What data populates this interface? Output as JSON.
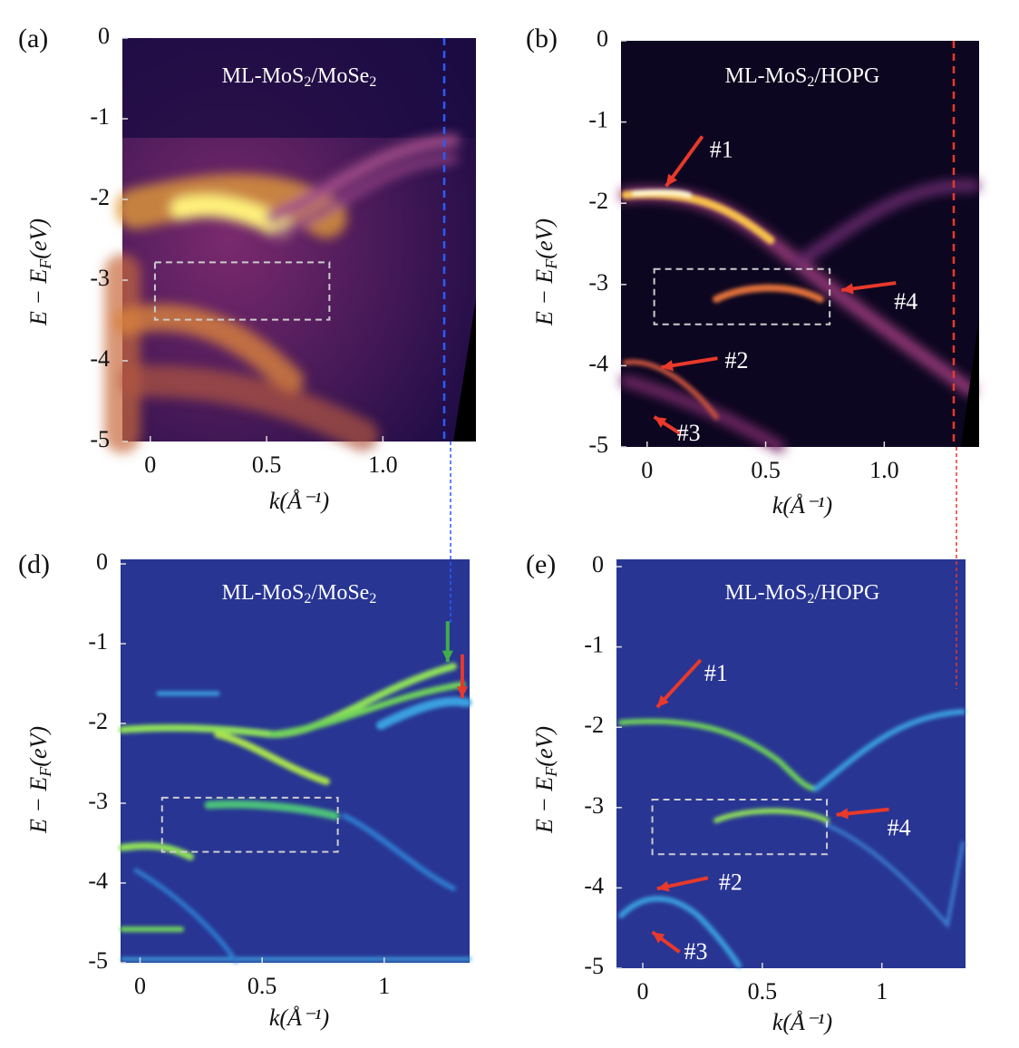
{
  "chart_data": [
    {
      "type": "image",
      "panel": "(a)",
      "title": [
        "ML-MoS",
        "2",
        "/MoSe",
        "2"
      ],
      "xlabel": "k(Å⁻¹)",
      "ylabel": [
        "E − E",
        "F",
        "(eV)"
      ],
      "xlim": [
        -0.12,
        1.4
      ],
      "ylim": [
        -5,
        0
      ],
      "xticks": [
        0,
        0.5,
        {
          "value": 1,
          "label": "1.0"
        }
      ],
      "yticks": [
        0,
        -1,
        -2,
        -3,
        -4,
        -5
      ],
      "box": {
        "x": [
          0.02,
          0.77
        ],
        "y": [
          -2.78,
          -3.49
        ]
      },
      "annotations": []
    },
    {
      "type": "image",
      "panel": "(b)",
      "title": [
        "ML-MoS",
        "2",
        "/HOPG"
      ],
      "xlabel": "k(Å⁻¹)",
      "ylabel": [
        "E − E",
        "F",
        "(eV)"
      ],
      "xlim": [
        -0.11,
        1.4
      ],
      "ylim": [
        -5,
        0
      ],
      "xticks": [
        0,
        0.5,
        {
          "value": 1,
          "label": "1.0"
        }
      ],
      "yticks": [
        0,
        -1,
        -2,
        -3,
        -4,
        -5
      ],
      "box": {
        "x": [
          0.03,
          0.77
        ],
        "y": [
          -2.81,
          -3.49
        ]
      },
      "annotations": [
        {
          "text": "#1",
          "x": 0.08,
          "y": -1.79,
          "color": "#e8392b"
        },
        {
          "text": "#4",
          "x": 0.82,
          "y": -3.07,
          "color": "#e8392b"
        },
        {
          "text": "#2",
          "x": 0.06,
          "y": -4.02,
          "color": "#e8392b"
        },
        {
          "text": "#3",
          "x": 0.03,
          "y": -4.63,
          "color": "#e8392b"
        }
      ]
    },
    {
      "type": "image",
      "panel": "(d)",
      "title": [
        "ML-MoS",
        "2",
        "/MoSe",
        "2"
      ],
      "xlabel": "k(Å⁻¹)",
      "ylabel": [
        "E − E",
        "F",
        "(eV)"
      ],
      "xlim": [
        -0.08,
        1.35
      ],
      "ylim": [
        -5,
        0
      ],
      "xticks": [
        0,
        0.5,
        1
      ],
      "yticks": [
        0,
        -1,
        -2,
        -3,
        -4,
        -5
      ],
      "box": {
        "x": [
          0.09,
          0.81
        ],
        "y": [
          -2.93,
          -3.61
        ]
      },
      "annotations": [
        {
          "x": 1.26,
          "y": -1.23,
          "color": "#3fae49"
        },
        {
          "x": 1.32,
          "y": -1.68,
          "color": "#e8392b"
        }
      ]
    },
    {
      "type": "image",
      "panel": "(e)",
      "title": [
        "ML-MoS",
        "2",
        "/HOPG"
      ],
      "xlabel": "k(Å⁻¹)",
      "ylabel": [
        "E − E",
        "F",
        "(eV)"
      ],
      "xlim": [
        -0.11,
        1.35
      ],
      "ylim": [
        -5,
        0
      ],
      "xticks": [
        0,
        0.5,
        1
      ],
      "yticks": [
        0,
        -1,
        -2,
        -3,
        -4,
        -5
      ],
      "box": {
        "x": [
          0.04,
          0.77
        ],
        "y": [
          -2.9,
          -3.58
        ]
      },
      "annotations": [
        {
          "text": "#1",
          "x": 0.06,
          "y": -1.75,
          "color": "#e8392b"
        },
        {
          "text": "#4",
          "x": 0.81,
          "y": -3.09,
          "color": "#e8392b"
        },
        {
          "text": "#2",
          "x": 0.06,
          "y": -4.01,
          "color": "#e8392b"
        },
        {
          "text": "#3",
          "x": 0.04,
          "y": -4.55,
          "color": "#e8392b"
        }
      ]
    }
  ]
}
